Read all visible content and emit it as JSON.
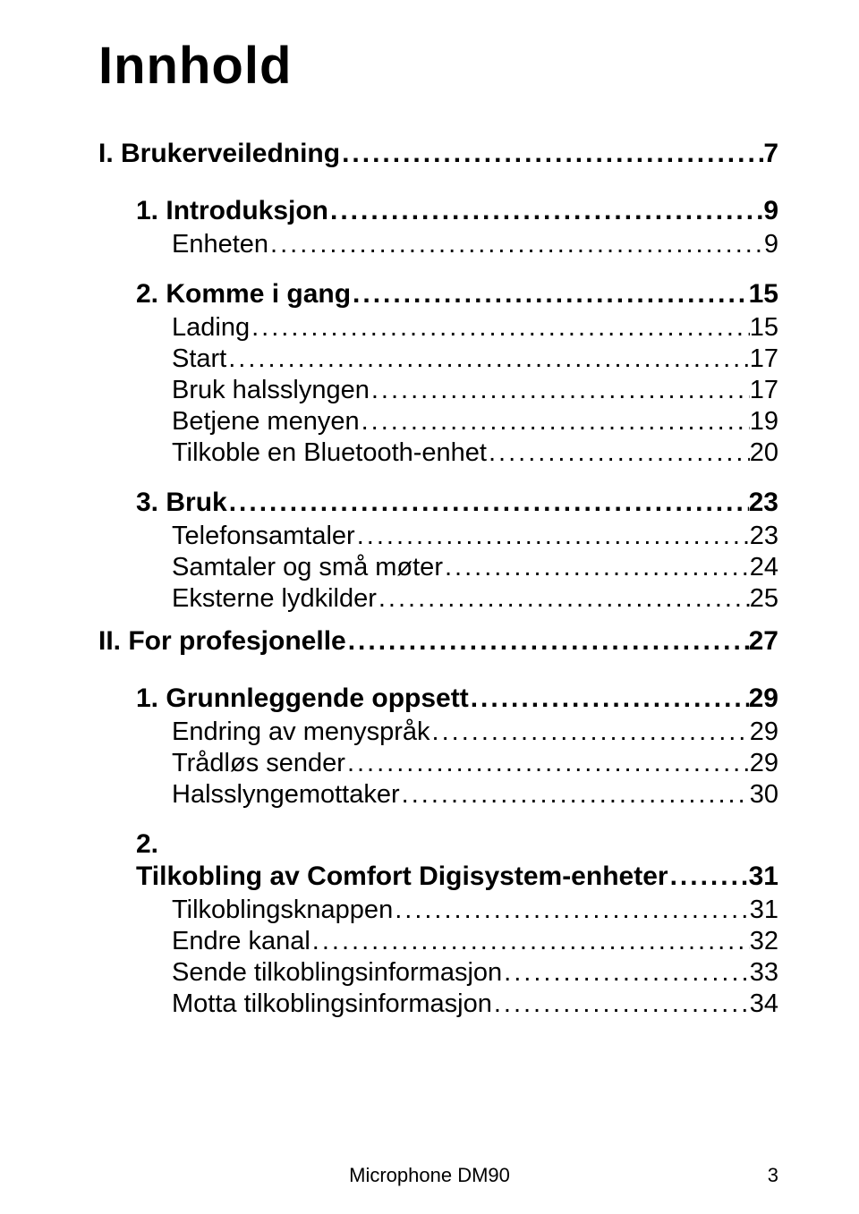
{
  "title": "Innhold",
  "toc": {
    "parts": [
      {
        "label": "I. Brukerveiledning",
        "page": "7",
        "chapters": [
          {
            "num": "1.",
            "label": "Introduksjon",
            "page": "9",
            "entries": [
              {
                "label": "Enheten",
                "page": "9"
              }
            ]
          },
          {
            "num": "2.",
            "label": "Komme i gang",
            "page": "15",
            "entries": [
              {
                "label": "Lading",
                "page": "15"
              },
              {
                "label": "Start",
                "page": "17"
              },
              {
                "label": "Bruk halsslyngen",
                "page": "17"
              },
              {
                "label": "Betjene menyen",
                "page": "19"
              },
              {
                "label": "Tilkoble en Bluetooth-enhet",
                "page": "20"
              }
            ]
          },
          {
            "num": "3.",
            "label": "Bruk",
            "page": "23",
            "entries": [
              {
                "label": "Telefonsamtaler",
                "page": "23"
              },
              {
                "label": "Samtaler og små møter",
                "page": "24"
              },
              {
                "label": "Eksterne lydkilder",
                "page": "25"
              }
            ]
          }
        ]
      },
      {
        "label": "II. For profesjonelle",
        "page": "27",
        "chapters": [
          {
            "num": "1.",
            "label": "Grunnleggende oppsett",
            "page": "29",
            "entries": [
              {
                "label": "Endring av menyspråk",
                "page": "29"
              },
              {
                "label": "Trådløs sender",
                "page": "29"
              },
              {
                "label": "Halsslyngemottaker",
                "page": "30"
              }
            ]
          },
          {
            "num": "2.",
            "label": "Tilkobling av Comfort Digisystem-enheter",
            "page": "31",
            "split": true,
            "entries": [
              {
                "label": "Tilkoblingsknappen",
                "page": "31"
              },
              {
                "label": "Endre kanal",
                "page": "32"
              },
              {
                "label": "Sende tilkoblingsinformasjon",
                "page": "33"
              },
              {
                "label": "Motta tilkoblingsinformasjon",
                "page": "34"
              }
            ]
          }
        ]
      }
    ]
  },
  "footer": {
    "product": "Microphone DM90",
    "page_number": "3"
  },
  "dots": "...................................................................................................."
}
